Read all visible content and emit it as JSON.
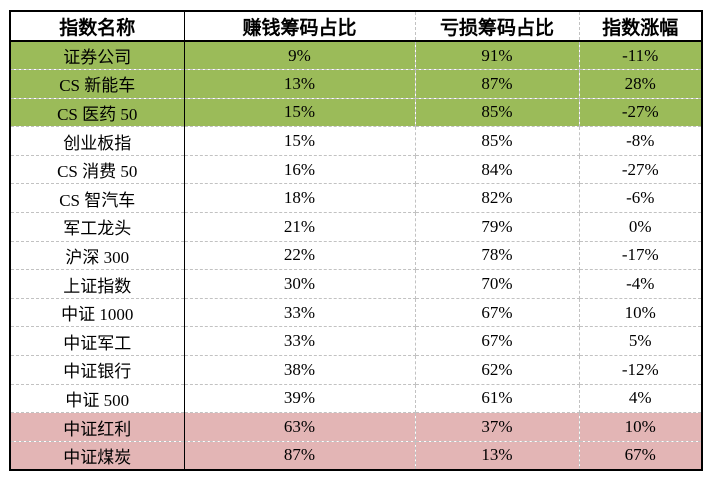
{
  "table": {
    "columns": [
      "指数名称",
      "赚钱筹码占比",
      "亏损筹码占比",
      "指数涨幅"
    ],
    "rows": [
      {
        "name": "证券公司",
        "profit": "9%",
        "loss": "91%",
        "change": "-11%",
        "highlight": "green"
      },
      {
        "name": "CS 新能车",
        "profit": "13%",
        "loss": "87%",
        "change": "28%",
        "highlight": "green"
      },
      {
        "name": "CS 医药 50",
        "profit": "15%",
        "loss": "85%",
        "change": "-27%",
        "highlight": "green"
      },
      {
        "name": "创业板指",
        "profit": "15%",
        "loss": "85%",
        "change": "-8%",
        "highlight": "none"
      },
      {
        "name": "CS 消费 50",
        "profit": "16%",
        "loss": "84%",
        "change": "-27%",
        "highlight": "none"
      },
      {
        "name": "CS 智汽车",
        "profit": "18%",
        "loss": "82%",
        "change": "-6%",
        "highlight": "none"
      },
      {
        "name": "军工龙头",
        "profit": "21%",
        "loss": "79%",
        "change": "0%",
        "highlight": "none"
      },
      {
        "name": "沪深 300",
        "profit": "22%",
        "loss": "78%",
        "change": "-17%",
        "highlight": "none"
      },
      {
        "name": "上证指数",
        "profit": "30%",
        "loss": "70%",
        "change": "-4%",
        "highlight": "none"
      },
      {
        "name": "中证 1000",
        "profit": "33%",
        "loss": "67%",
        "change": "10%",
        "highlight": "none"
      },
      {
        "name": "中证军工",
        "profit": "33%",
        "loss": "67%",
        "change": "5%",
        "highlight": "none"
      },
      {
        "name": "中证银行",
        "profit": "38%",
        "loss": "62%",
        "change": "-12%",
        "highlight": "none"
      },
      {
        "name": "中证 500",
        "profit": "39%",
        "loss": "61%",
        "change": "4%",
        "highlight": "none"
      },
      {
        "name": "中证红利",
        "profit": "63%",
        "loss": "37%",
        "change": "10%",
        "highlight": "pink"
      },
      {
        "name": "中证煤炭",
        "profit": "87%",
        "loss": "13%",
        "change": "67%",
        "highlight": "pink"
      }
    ]
  },
  "colors": {
    "green_highlight": "#9bbb59",
    "pink_highlight": "#e3b5b5",
    "border": "#000000",
    "dashed_grid": "#c2c2c2"
  },
  "chart_data": {
    "type": "table",
    "title": "",
    "columns": [
      "指数名称",
      "赚钱筹码占比",
      "亏损筹码占比",
      "指数涨幅"
    ],
    "rows": [
      [
        "证券公司",
        "9%",
        "91%",
        "-11%"
      ],
      [
        "CS 新能车",
        "13%",
        "87%",
        "28%"
      ],
      [
        "CS 医药 50",
        "15%",
        "85%",
        "-27%"
      ],
      [
        "创业板指",
        "15%",
        "85%",
        "-8%"
      ],
      [
        "CS 消费 50",
        "16%",
        "84%",
        "-27%"
      ],
      [
        "CS 智汽车",
        "18%",
        "82%",
        "-6%"
      ],
      [
        "军工龙头",
        "21%",
        "79%",
        "0%"
      ],
      [
        "沪深 300",
        "22%",
        "78%",
        "-17%"
      ],
      [
        "上证指数",
        "30%",
        "70%",
        "-4%"
      ],
      [
        "中证 1000",
        "33%",
        "67%",
        "10%"
      ],
      [
        "中证军工",
        "33%",
        "67%",
        "5%"
      ],
      [
        "中证银行",
        "38%",
        "62%",
        "-12%"
      ],
      [
        "中证 500",
        "39%",
        "61%",
        "4%"
      ],
      [
        "中证红利",
        "63%",
        "37%",
        "10%"
      ],
      [
        "中证煤炭",
        "87%",
        "13%",
        "67%"
      ]
    ],
    "highlighted_rows": {
      "green": [
        "证券公司",
        "CS 新能车",
        "CS 医药 50"
      ],
      "pink": [
        "中证红利",
        "中证煤炭"
      ]
    }
  }
}
